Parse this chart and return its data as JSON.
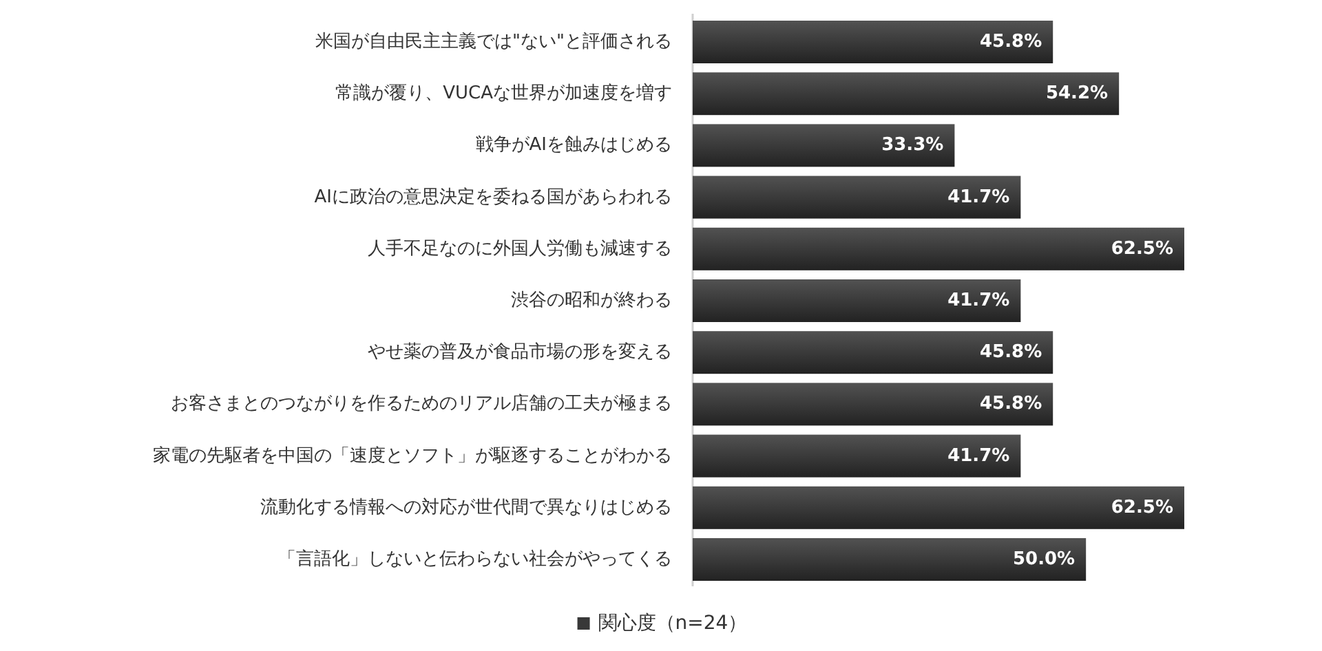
{
  "chart_data": {
    "type": "bar",
    "orientation": "horizontal",
    "legend": "bottom",
    "categories": [
      "米国が自由民主主義では\"ない\"と評価される",
      "常識が覆り、VUCAな世界が加速度を増す",
      "戦争がAIを蝕みはじめる",
      "AIに政治の意思決定を委ねる国があらわれる",
      "人手不足なのに外国人労働も減速する",
      "渋谷の昭和が終わる",
      "やせ薬の普及が食品市場の形を変える",
      "お客さまとのつながりを作るためのリアル店舗の工夫が極まる",
      "家電の先駆者を中国の「速度とソフト」が駆逐することがわかる",
      "流動化する情報への対応が世代間で異なりはじめる",
      "「言語化」しないと伝わらない社会がやってくる"
    ],
    "series": [
      {
        "name": "関心度（n=24）",
        "color": "#383838",
        "values": [
          45.8,
          54.2,
          33.3,
          41.7,
          62.5,
          41.7,
          45.8,
          45.8,
          41.7,
          62.5,
          50.0
        ],
        "value_labels": [
          "45.8%",
          "54.2%",
          "33.3%",
          "41.7%",
          "62.5%",
          "41.7%",
          "45.8%",
          "45.8%",
          "41.7%",
          "62.5%",
          "50.0%"
        ]
      }
    ]
  }
}
